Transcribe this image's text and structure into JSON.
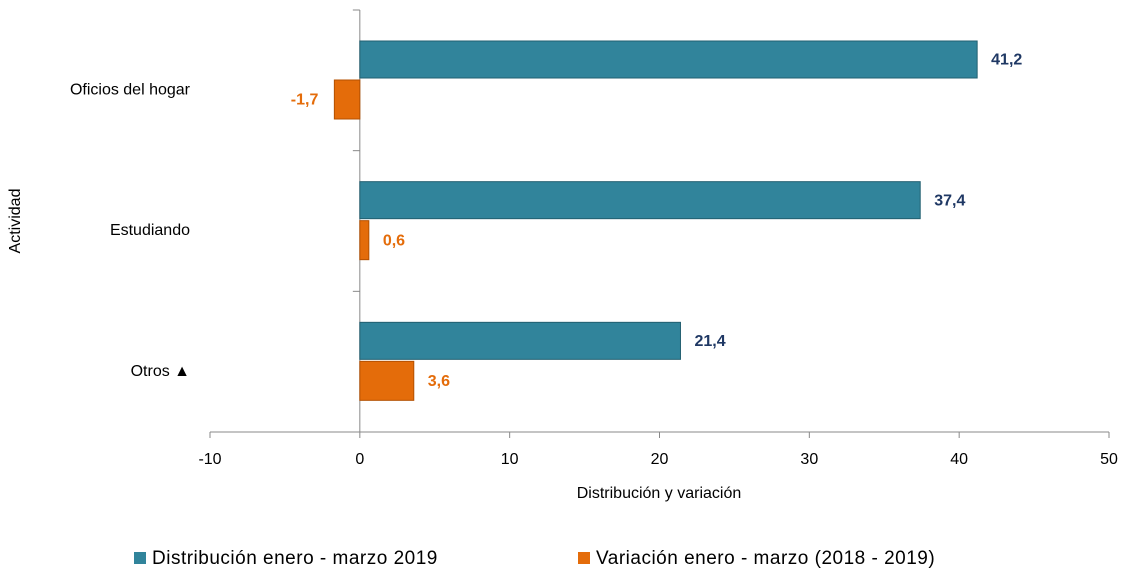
{
  "chart_data": {
    "type": "bar",
    "orientation": "horizontal",
    "categories": [
      "Oficios del hogar",
      "Estudiando",
      "Otros ▲"
    ],
    "series": [
      {
        "name": "Distribución enero - marzo  2019",
        "color": "#31849b",
        "label_color": "#1f3864",
        "values": [
          41.2,
          37.4,
          21.4
        ],
        "value_labels": [
          "41,2",
          "37,4",
          "21,4"
        ]
      },
      {
        "name": "Variación enero - marzo (2018 - 2019)",
        "color": "#e46c0a",
        "label_color": "#e46c0a",
        "values": [
          -1.7,
          0.6,
          3.6
        ],
        "value_labels": [
          "-1,7",
          "0,6",
          "3,6"
        ]
      }
    ],
    "xlabel": "Distribución y variación",
    "ylabel": "Actividad",
    "xlim": [
      -10,
      50
    ],
    "xticks": [
      -10,
      0,
      10,
      20,
      30,
      40,
      50
    ],
    "legend": "bottom"
  }
}
